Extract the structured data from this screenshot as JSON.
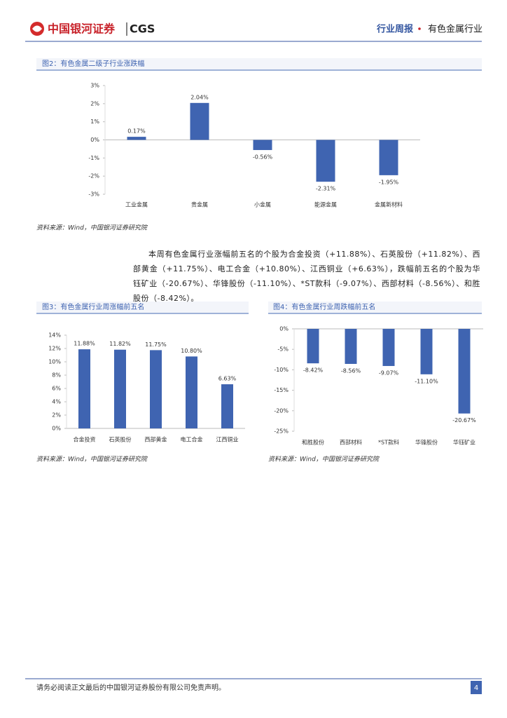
{
  "header": {
    "logo": "中国银河证券",
    "logo_en": "CGS",
    "report_type": "行业周报",
    "sector": "有色金属行业"
  },
  "chart_data": [
    {
      "type": "bar",
      "title": "图2：有色金属二级子行业涨跌幅",
      "categories": [
        "工业金属",
        "贵金属",
        "小金属",
        "能源金属",
        "金属新材料"
      ],
      "values": [
        0.17,
        2.04,
        -0.56,
        -2.31,
        -1.95
      ],
      "value_labels": [
        "0.17%",
        "2.04%",
        "-0.56%",
        "-2.31%",
        "-1.95%"
      ],
      "color": "#3f64b1",
      "ylim": [
        -3,
        3
      ],
      "yticks": [
        {
          "value": -3,
          "label": "-3%"
        },
        {
          "value": -2,
          "label": "-2%"
        },
        {
          "value": -1,
          "label": "-1%"
        },
        {
          "value": 0,
          "label": "0%"
        },
        {
          "value": 1,
          "label": "1%"
        },
        {
          "value": 2,
          "label": "2%"
        },
        {
          "value": 3,
          "label": "3%"
        }
      ],
      "source": "资料来源：Wind，中国银河证券研究院"
    },
    {
      "type": "bar",
      "title": "图3：有色金属行业周涨幅前五名",
      "categories": [
        "合金投资",
        "石英股份",
        "西部黄金",
        "电工合金",
        "江西铜业"
      ],
      "values": [
        11.88,
        11.82,
        11.75,
        10.8,
        6.63
      ],
      "value_labels": [
        "11.88%",
        "11.82%",
        "11.75%",
        "10.80%",
        "6.63%"
      ],
      "color": "#3f64b1",
      "ylim": [
        0,
        14
      ],
      "yticks": [
        {
          "value": 0,
          "label": "0%"
        },
        {
          "value": 2,
          "label": "2%"
        },
        {
          "value": 4,
          "label": "4%"
        },
        {
          "value": 6,
          "label": "6%"
        },
        {
          "value": 8,
          "label": "8%"
        },
        {
          "value": 10,
          "label": "10%"
        },
        {
          "value": 12,
          "label": "12%"
        },
        {
          "value": 14,
          "label": "14%"
        }
      ],
      "source": "资料来源：Wind，中国银河证券研究院"
    },
    {
      "type": "bar",
      "title": "图4：有色金属行业周跌幅前五名",
      "categories": [
        "和胜股份",
        "西部材料",
        "*ST款科",
        "华锋股份",
        "华钰矿业"
      ],
      "values": [
        -8.42,
        -8.56,
        -9.07,
        -11.1,
        -20.67
      ],
      "value_labels": [
        "-8.42%",
        "-8.56%",
        "-9.07%",
        "-11.10%",
        "-20.67%"
      ],
      "color": "#3f64b1",
      "ylim": [
        -25,
        0
      ],
      "yticks": [
        {
          "value": -25,
          "label": "-25%"
        },
        {
          "value": -20,
          "label": "-20%"
        },
        {
          "value": -15,
          "label": "-15%"
        },
        {
          "value": -10,
          "label": "-10%"
        },
        {
          "value": -5,
          "label": "-5%"
        },
        {
          "value": 0,
          "label": "0%"
        }
      ],
      "source": "资料来源：Wind，中国银河证券研究院"
    }
  ],
  "paragraph": "本周有色金属行业涨幅前五名的个股为合金投资（+11.88%）、石英股份（+11.82%）、西部黄金（+11.75%）、电工合金（+10.80%）、江西铜业（+6.63%），跌幅前五名的个股为华钰矿业（-20.67%）、华锋股份（-11.10%）、*ST款科（-9.07%）、西部材料（-8.56%）、和胜股份（-8.42%）。",
  "footer": {
    "disclaimer": "请务必阅读正文最后的中国银河证券股份有限公司免责声明。",
    "page": 4
  }
}
